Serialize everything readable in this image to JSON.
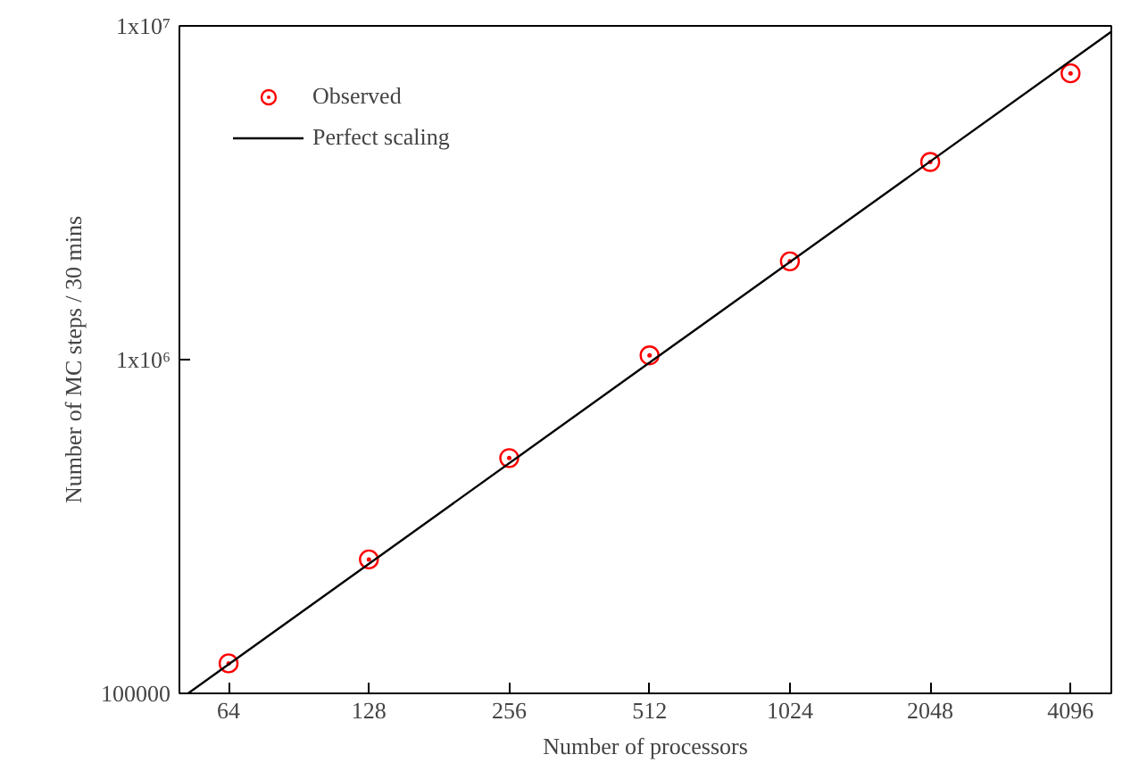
{
  "chart_data": {
    "type": "scatter",
    "xlabel": "Number of processors",
    "ylabel": "Number of MC steps / 30 mins",
    "log": "xy",
    "xlim": [
      50.2,
      5010
    ],
    "ylim": [
      100000,
      10000000
    ],
    "xticks": [
      64,
      128,
      256,
      512,
      1024,
      2048,
      4096
    ],
    "yticks": [
      100000,
      {
        "value": 1000000,
        "label": "1x10⁶"
      },
      {
        "value": 10000000,
        "label": "1x10⁷"
      }
    ],
    "grid": false,
    "legend": "top left",
    "series": [
      {
        "name": "Observed",
        "marker": "circle",
        "color": "#ff0000",
        "x": [
          64,
          128,
          256,
          512,
          1024,
          2048,
          4096
        ],
        "values": [
          123000,
          252000,
          507000,
          1030000,
          1970000,
          3910000,
          7210000
        ]
      },
      {
        "name": "Perfect scaling",
        "type": "line",
        "color": "#000000",
        "line_style": "solid",
        "x": [
          52.4,
          5010
        ],
        "values": [
          100000,
          9610000
        ]
      }
    ]
  }
}
